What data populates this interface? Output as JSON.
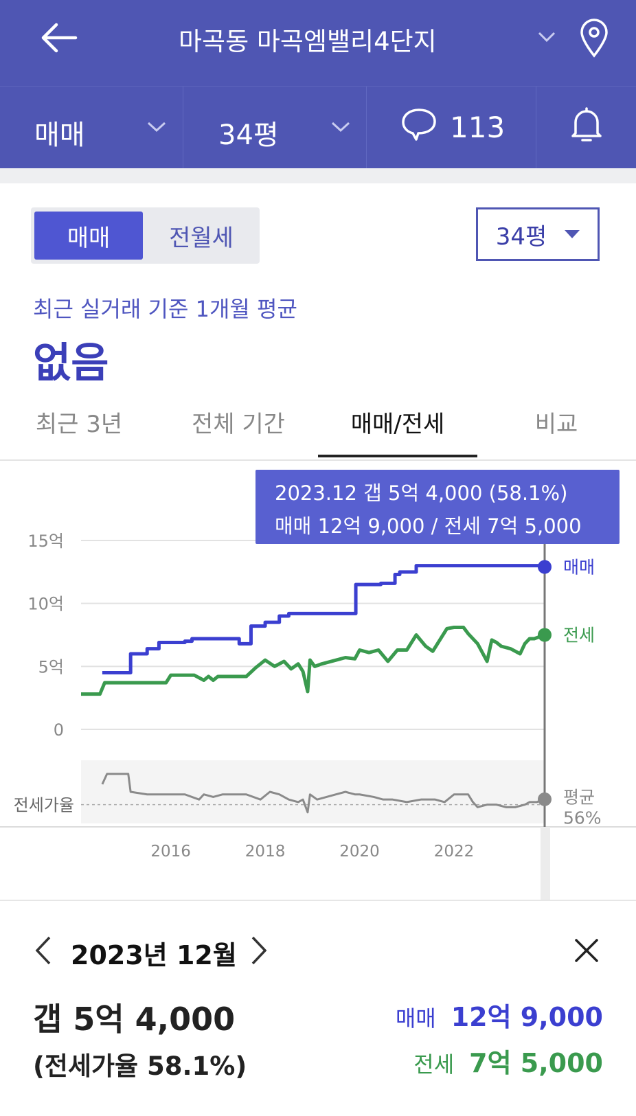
{
  "header": {
    "title": "마곡동 마곡엠밸리4단지",
    "back_icon": "back-arrow-icon",
    "location_icon": "location-pin-icon"
  },
  "subbar": {
    "deal_type": "매매",
    "area": "34평",
    "comments_count": "113",
    "comment_icon": "speech-bubble-icon",
    "bell_icon": "bell-icon"
  },
  "toggle": {
    "sale": "매매",
    "rent": "전월세"
  },
  "area_select": "34평",
  "average": {
    "label": "최근 실거래 기준 1개월 평균",
    "value": "없음"
  },
  "tabs": [
    {
      "label": "최근 3년",
      "active": false
    },
    {
      "label": "전체 기간",
      "active": false
    },
    {
      "label": "매매/전세",
      "active": true
    },
    {
      "label": "비교",
      "active": false
    }
  ],
  "tooltip": {
    "line1": "2023.12  갭 5억 4,000 (58.1%)",
    "line2": "매매 12억 9,000 / 전세 7억 5,000"
  },
  "chart_data": {
    "type": "line",
    "y_tick_labels": [
      "15억",
      "10억",
      "5억",
      "0"
    ],
    "y_ticks": [
      15,
      10,
      5,
      0
    ],
    "ylim": [
      0,
      15
    ],
    "x_tick_labels": [
      "2016",
      "2018",
      "2020",
      "2022"
    ],
    "x_ticks": [
      2016,
      2018,
      2020,
      2022
    ],
    "xlim": [
      2014.1,
      2023.92
    ],
    "series": [
      {
        "name": "매매",
        "color": "#3b3fd0",
        "x": [
          2014.55,
          2015.1,
          2015.15,
          2015.4,
          2015.5,
          2015.65,
          2015.75,
          2016.0,
          2016.3,
          2016.45,
          2016.9,
          2017.2,
          2017.45,
          2017.5,
          2017.7,
          2017.85,
          2018.0,
          2018.3,
          2018.5,
          2019.2,
          2019.85,
          2019.92,
          2020.3,
          2020.45,
          2020.55,
          2020.75,
          2020.85,
          2021.2,
          2021.5,
          2022.0,
          2022.5,
          2023.0,
          2023.92
        ],
        "y": [
          4.5,
          4.5,
          6.0,
          6.0,
          6.4,
          6.4,
          6.9,
          6.9,
          7.0,
          7.2,
          7.2,
          7.2,
          6.8,
          6.8,
          8.2,
          8.2,
          8.5,
          9.0,
          9.2,
          9.2,
          9.2,
          11.5,
          11.5,
          11.6,
          11.6,
          12.3,
          12.5,
          13.0,
          13.0,
          13.0,
          13.0,
          13.0,
          12.9
        ]
      },
      {
        "name": "전세",
        "color": "#3a9a4e",
        "x": [
          2014.1,
          2014.5,
          2014.6,
          2015.0,
          2015.3,
          2015.9,
          2016.0,
          2016.5,
          2016.7,
          2016.8,
          2016.9,
          2017.0,
          2017.2,
          2017.6,
          2017.8,
          2018.0,
          2018.2,
          2018.4,
          2018.55,
          2018.7,
          2018.8,
          2018.9,
          2018.95,
          2019.05,
          2019.2,
          2019.5,
          2019.7,
          2019.9,
          2020.0,
          2020.2,
          2020.4,
          2020.6,
          2020.8,
          2021.0,
          2021.2,
          2021.4,
          2021.55,
          2021.7,
          2021.85,
          2022.0,
          2022.2,
          2022.3,
          2022.5,
          2022.7,
          2022.8,
          2022.9,
          2023.0,
          2023.2,
          2023.4,
          2023.5,
          2023.6,
          2023.7,
          2023.92
        ],
        "y": [
          2.8,
          2.8,
          3.7,
          3.7,
          3.7,
          3.7,
          4.3,
          4.3,
          3.9,
          4.2,
          3.9,
          4.2,
          4.2,
          4.2,
          4.9,
          5.5,
          5.0,
          5.4,
          4.8,
          5.2,
          4.6,
          3.0,
          5.5,
          5.0,
          5.2,
          5.5,
          5.7,
          5.6,
          6.3,
          6.1,
          6.3,
          5.4,
          6.3,
          6.3,
          7.5,
          6.6,
          6.2,
          7.1,
          8.0,
          8.1,
          8.1,
          7.6,
          6.8,
          5.4,
          7.1,
          6.9,
          6.6,
          6.4,
          6.0,
          6.8,
          7.2,
          7.2,
          7.5
        ]
      },
      {
        "name": "전세가율",
        "color": "#8a8a8a",
        "x": [
          2014.55,
          2014.65,
          2015.1,
          2015.15,
          2015.5,
          2015.8,
          2016.0,
          2016.3,
          2016.6,
          2016.7,
          2016.9,
          2017.1,
          2017.3,
          2017.6,
          2017.9,
          2018.1,
          2018.3,
          2018.5,
          2018.7,
          2018.8,
          2018.9,
          2018.95,
          2019.1,
          2019.3,
          2019.5,
          2019.7,
          2019.9,
          2020.0,
          2020.3,
          2020.5,
          2020.7,
          2021.0,
          2021.3,
          2021.6,
          2021.8,
          2022.0,
          2022.3,
          2022.4,
          2022.5,
          2022.7,
          2022.9,
          2023.1,
          2023.3,
          2023.5,
          2023.6,
          2023.75,
          2023.92
        ],
        "y": [
          64,
          68,
          68,
          61,
          60,
          60,
          60,
          60,
          58,
          60,
          59,
          60,
          60,
          60,
          58,
          61,
          60,
          58,
          57,
          58,
          53,
          60,
          58,
          59,
          60,
          61,
          60,
          60,
          59,
          58,
          58,
          57,
          58,
          58,
          57,
          60,
          60,
          57,
          55,
          56,
          56,
          55,
          55,
          56,
          57,
          57,
          58.1
        ]
      }
    ],
    "average_ratio_label": "평균\n56%",
    "ratio_axis_label": "전세가율",
    "ratio_ylim": [
      50,
      72
    ],
    "ratio_average": 56,
    "selected": {
      "x": 2023.92,
      "sale": 12.9,
      "jeonse": 7.5,
      "ratio": 58.1
    }
  },
  "detail": {
    "date": "2023년 12월",
    "gap": "갭 5억 4,000",
    "ratio": "(전세가율 58.1%)",
    "sale_label": "매매",
    "sale_value": "12억 9,000",
    "jeonse_label": "전세",
    "jeonse_value": "7억 5,000",
    "colors": {
      "sale": "#3b3fd0",
      "jeonse": "#3a9a4e"
    }
  }
}
